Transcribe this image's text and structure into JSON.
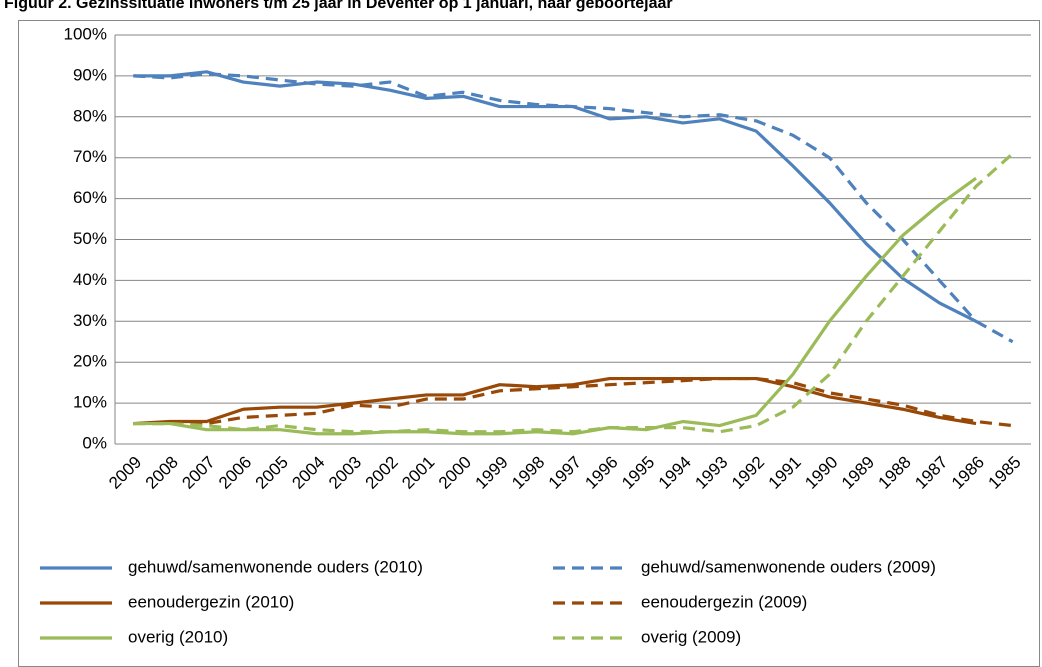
{
  "chart_data": {
    "type": "line",
    "title": "Figuur 2. Gezinssituatie inwoners t/m 25 jaar in Deventer op 1 januari, naar geboortejaar",
    "categories": [
      "2009",
      "2008",
      "2007",
      "2006",
      "2005",
      "2004",
      "2003",
      "2002",
      "2001",
      "2000",
      "1999",
      "1998",
      "1997",
      "1996",
      "1995",
      "1994",
      "1993",
      "1992",
      "1991",
      "1990",
      "1989",
      "1988",
      "1987",
      "1986",
      "1985"
    ],
    "ylim": [
      0,
      100
    ],
    "yticks": [
      {
        "value": 0,
        "label": "0%"
      },
      {
        "value": 10,
        "label": "10%"
      },
      {
        "value": 20,
        "label": "20%"
      },
      {
        "value": 30,
        "label": "30%"
      },
      {
        "value": 40,
        "label": "40%"
      },
      {
        "value": 50,
        "label": "50%"
      },
      {
        "value": 60,
        "label": "60%"
      },
      {
        "value": 70,
        "label": "70%"
      },
      {
        "value": 80,
        "label": "80%"
      },
      {
        "value": 90,
        "label": "90%"
      },
      {
        "value": 100,
        "label": "100%"
      }
    ],
    "grid": true,
    "legend": "bottom",
    "series": [
      {
        "name": "gehuwd/samenwonende ouders (2010)",
        "color": "#4f81bd",
        "line_style": "solid",
        "values": [
          90,
          90,
          91,
          88.5,
          87.5,
          88.5,
          88,
          86.5,
          84.5,
          85,
          82.5,
          82.5,
          82.5,
          79.5,
          80,
          78.5,
          79.5,
          76.5,
          68,
          59,
          49,
          40.5,
          34.5,
          30,
          null
        ]
      },
      {
        "name": "gehuwd/samenwonende ouders (2009)",
        "color": "#4f81bd",
        "line_style": "dashed",
        "values": [
          90,
          89.5,
          90.5,
          90,
          89,
          88,
          87.5,
          88.5,
          85,
          86,
          84,
          83,
          82.5,
          82,
          81,
          80,
          80.5,
          79,
          75.5,
          70,
          59,
          50,
          40,
          30,
          25
        ]
      },
      {
        "name": "eenoudergezin (2010)",
        "color": "#984807",
        "line_style": "solid",
        "values": [
          5,
          5.5,
          5.5,
          8.5,
          9,
          9,
          10,
          11,
          12,
          12,
          14.5,
          14,
          14.5,
          16,
          16,
          16,
          16,
          16,
          14,
          11.5,
          10,
          8.5,
          6.5,
          5,
          null
        ]
      },
      {
        "name": "eenoudergezin (2009)",
        "color": "#984807",
        "line_style": "dashed",
        "values": [
          5,
          5,
          5,
          6.5,
          7,
          7.5,
          9.5,
          9,
          11,
          11,
          13,
          13.5,
          14,
          14.5,
          15,
          15.5,
          16,
          16,
          15,
          12.5,
          11,
          9.5,
          7,
          5.5,
          4.5
        ]
      },
      {
        "name": "overig (2010)",
        "color": "#9bbb59",
        "line_style": "solid",
        "values": [
          5,
          5,
          3.5,
          3.5,
          3.5,
          2.5,
          2.5,
          3,
          3,
          2.5,
          2.5,
          3,
          2.5,
          4,
          3.5,
          5.5,
          4.5,
          7,
          17,
          30,
          41,
          51,
          58.5,
          65,
          null
        ]
      },
      {
        "name": "overig (2009)",
        "color": "#9bbb59",
        "line_style": "dashed",
        "values": [
          5,
          5,
          4.5,
          3.5,
          4.5,
          3.5,
          3,
          3,
          3.5,
          3,
          3,
          3.5,
          3,
          4,
          4,
          4,
          3,
          4.5,
          9,
          17,
          30,
          41,
          52,
          63,
          71
        ]
      }
    ]
  }
}
